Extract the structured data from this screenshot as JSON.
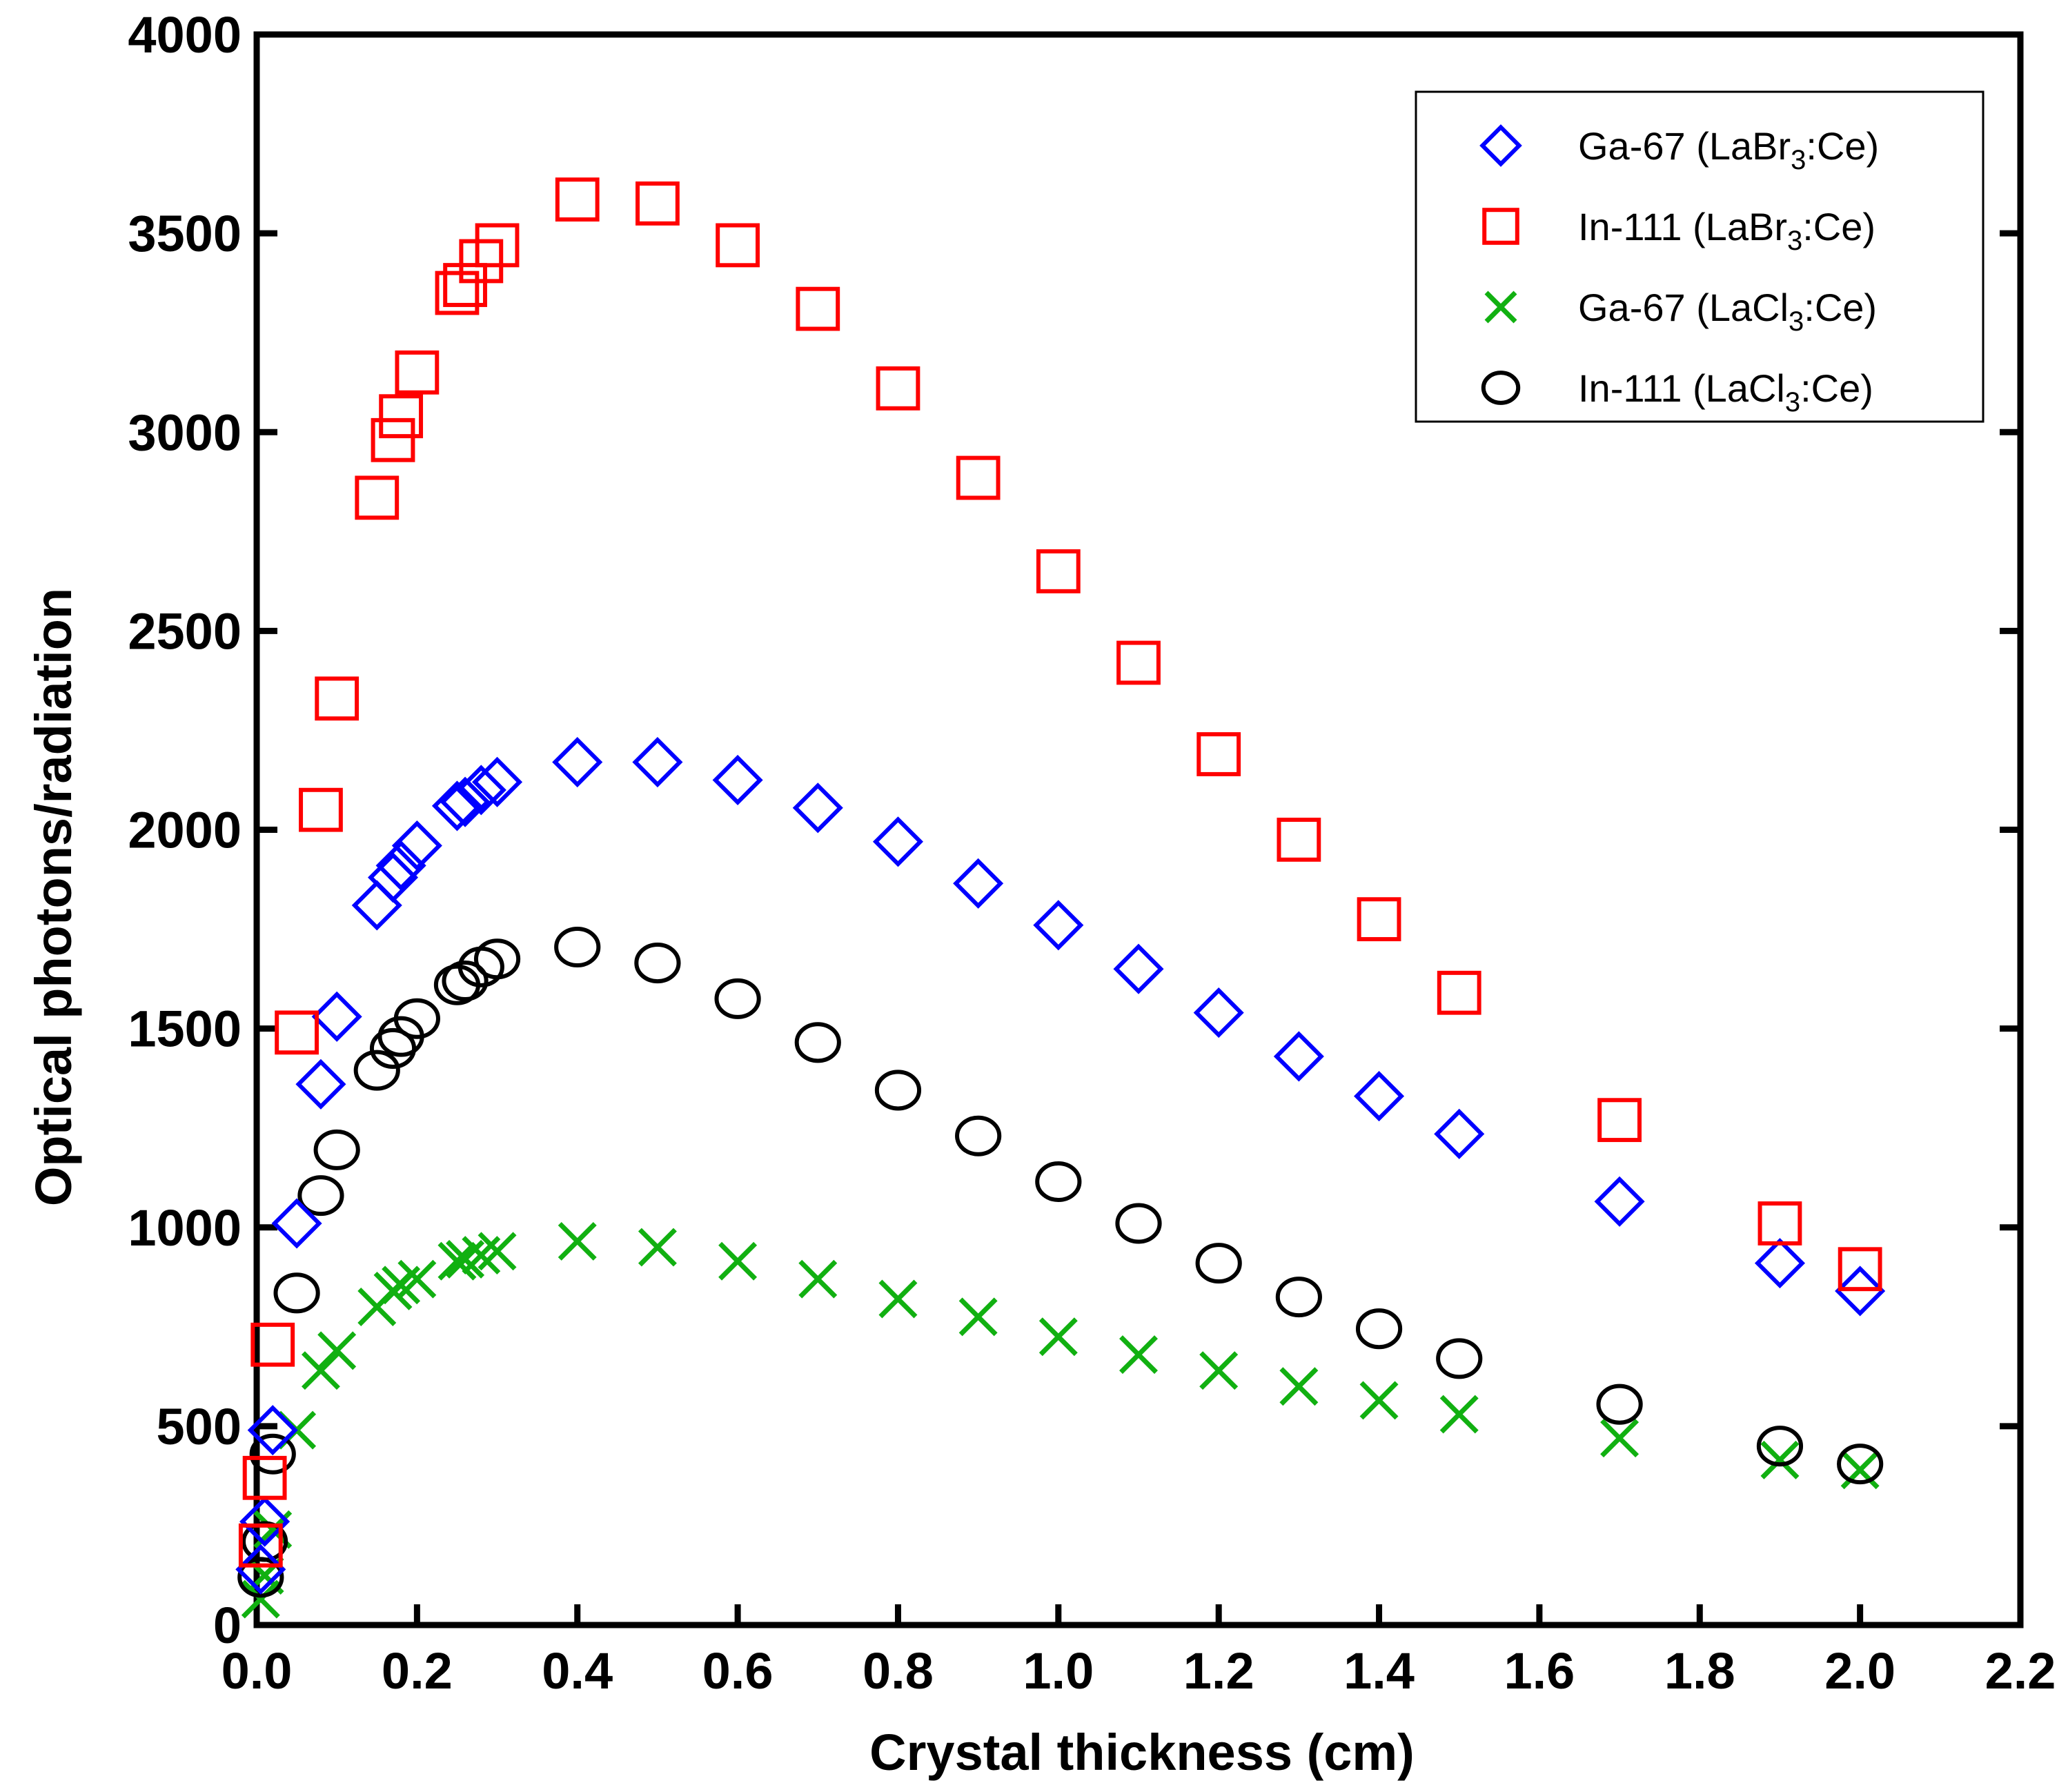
{
  "chart_data": {
    "type": "scatter",
    "title": "",
    "xlabel": "Crystal thickness (cm)",
    "ylabel": "Optical photons/radiation",
    "xlim": [
      0,
      2.2
    ],
    "ylim": [
      0,
      4000
    ],
    "xticks": [
      "0.0",
      "0.2",
      "0.4",
      "0.6",
      "0.8",
      "1.0",
      "1.2",
      "1.4",
      "1.6",
      "1.8",
      "2.0",
      "2.2"
    ],
    "yticks": [
      "0",
      "500",
      "1000",
      "1500",
      "2000",
      "2500",
      "3000",
      "3500",
      "4000"
    ],
    "grid": false,
    "legend_position": "top-right",
    "series": [
      {
        "name": "Ga-67 (LaBr3:Ce)",
        "legend": {
          "base": "Ga-67 (LaBr",
          "sub": "3",
          "tail": ":Ce)"
        },
        "marker": "diamond",
        "color": "#0000ff",
        "points": [
          [
            0.005,
            140
          ],
          [
            0.01,
            260
          ],
          [
            0.02,
            490
          ],
          [
            0.05,
            1010
          ],
          [
            0.08,
            1360
          ],
          [
            0.1,
            1530
          ],
          [
            0.15,
            1810
          ],
          [
            0.17,
            1880
          ],
          [
            0.18,
            1910
          ],
          [
            0.2,
            1960
          ],
          [
            0.25,
            2060
          ],
          [
            0.26,
            2070
          ],
          [
            0.28,
            2100
          ],
          [
            0.3,
            2120
          ],
          [
            0.4,
            2170
          ],
          [
            0.5,
            2170
          ],
          [
            0.6,
            2125
          ],
          [
            0.7,
            2055
          ],
          [
            0.8,
            1970
          ],
          [
            0.9,
            1865
          ],
          [
            1.0,
            1760
          ],
          [
            1.1,
            1650
          ],
          [
            1.2,
            1540
          ],
          [
            1.3,
            1430
          ],
          [
            1.4,
            1330
          ],
          [
            1.5,
            1235
          ],
          [
            1.7,
            1065
          ],
          [
            1.9,
            910
          ],
          [
            2.0,
            840
          ]
        ]
      },
      {
        "name": "In-111 (LaBr3:Ce)",
        "legend": {
          "base": "In-111 (LaBr",
          "sub": "3",
          "tail": ":Ce)"
        },
        "marker": "square",
        "color": "#ff0000",
        "points": [
          [
            0.005,
            200
          ],
          [
            0.01,
            370
          ],
          [
            0.02,
            705
          ],
          [
            0.05,
            1490
          ],
          [
            0.08,
            2050
          ],
          [
            0.1,
            2330
          ],
          [
            0.15,
            2835
          ],
          [
            0.17,
            2980
          ],
          [
            0.18,
            3040
          ],
          [
            0.2,
            3150
          ],
          [
            0.25,
            3350
          ],
          [
            0.26,
            3370
          ],
          [
            0.28,
            3430
          ],
          [
            0.3,
            3470
          ],
          [
            0.4,
            3585
          ],
          [
            0.5,
            3575
          ],
          [
            0.6,
            3470
          ],
          [
            0.7,
            3310
          ],
          [
            0.8,
            3110
          ],
          [
            0.9,
            2885
          ],
          [
            1.0,
            2650
          ],
          [
            1.1,
            2420
          ],
          [
            1.2,
            2190
          ],
          [
            1.3,
            1975
          ],
          [
            1.4,
            1775
          ],
          [
            1.5,
            1590
          ],
          [
            1.7,
            1270
          ],
          [
            1.9,
            1010
          ],
          [
            2.0,
            895
          ]
        ]
      },
      {
        "name": "Ga-67 (LaCl3:Ce)",
        "legend": {
          "base": "Ga-67 (LaCl",
          "sub": "3",
          "tail": ":Ce)"
        },
        "marker": "x",
        "color": "#11b011",
        "points": [
          [
            0.005,
            65
          ],
          [
            0.01,
            125
          ],
          [
            0.02,
            240
          ],
          [
            0.05,
            490
          ],
          [
            0.08,
            640
          ],
          [
            0.1,
            690
          ],
          [
            0.15,
            800
          ],
          [
            0.17,
            840
          ],
          [
            0.18,
            855
          ],
          [
            0.2,
            870
          ],
          [
            0.25,
            915
          ],
          [
            0.26,
            920
          ],
          [
            0.28,
            930
          ],
          [
            0.3,
            940
          ],
          [
            0.4,
            965
          ],
          [
            0.5,
            950
          ],
          [
            0.6,
            915
          ],
          [
            0.7,
            870
          ],
          [
            0.8,
            820
          ],
          [
            0.9,
            775
          ],
          [
            1.0,
            725
          ],
          [
            1.1,
            680
          ],
          [
            1.2,
            640
          ],
          [
            1.3,
            600
          ],
          [
            1.4,
            565
          ],
          [
            1.5,
            530
          ],
          [
            1.7,
            470
          ],
          [
            1.9,
            415
          ],
          [
            2.0,
            390
          ]
        ]
      },
      {
        "name": "In-111 (LaCl3:Ce)",
        "legend": {
          "base": "In-111 (LaCl",
          "sub": "3",
          "tail": ":Ce)"
        },
        "marker": "circle",
        "color": "#000000",
        "points": [
          [
            0.005,
            120
          ],
          [
            0.01,
            210
          ],
          [
            0.02,
            430
          ],
          [
            0.05,
            835
          ],
          [
            0.08,
            1080
          ],
          [
            0.1,
            1195
          ],
          [
            0.15,
            1395
          ],
          [
            0.17,
            1450
          ],
          [
            0.18,
            1480
          ],
          [
            0.2,
            1525
          ],
          [
            0.25,
            1610
          ],
          [
            0.26,
            1620
          ],
          [
            0.28,
            1655
          ],
          [
            0.3,
            1675
          ],
          [
            0.4,
            1705
          ],
          [
            0.5,
            1665
          ],
          [
            0.6,
            1575
          ],
          [
            0.7,
            1465
          ],
          [
            0.8,
            1345
          ],
          [
            0.9,
            1230
          ],
          [
            1.0,
            1115
          ],
          [
            1.1,
            1010
          ],
          [
            1.2,
            910
          ],
          [
            1.3,
            825
          ],
          [
            1.4,
            745
          ],
          [
            1.5,
            670
          ],
          [
            1.7,
            555
          ],
          [
            1.9,
            450
          ],
          [
            2.0,
            405
          ]
        ]
      }
    ]
  }
}
